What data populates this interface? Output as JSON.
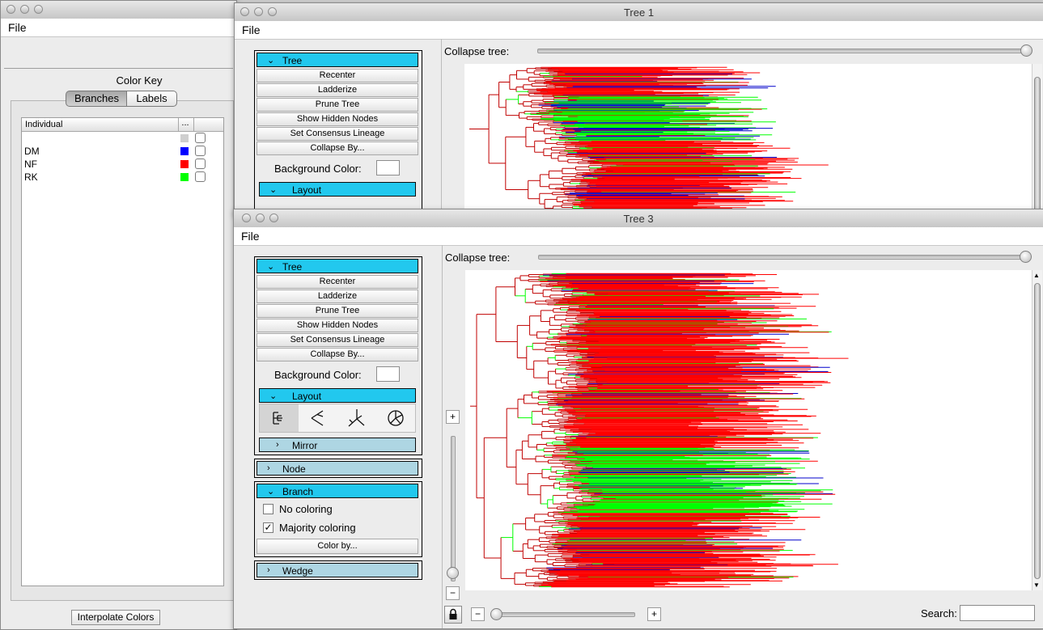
{
  "color_key_window": {
    "menu": "File",
    "heading": "Color Key",
    "tabs": [
      "Branches",
      "Labels"
    ],
    "table_headers": [
      "Individual",
      "..."
    ],
    "rows": [
      {
        "label": "",
        "color": "#cfcfcf"
      },
      {
        "label": "DM",
        "color": "#0000ff"
      },
      {
        "label": "NF",
        "color": "#ff0000"
      },
      {
        "label": "RK",
        "color": "#00ff00"
      }
    ],
    "interpolate_button": "Interpolate Colors"
  },
  "tree1": {
    "title": "Tree 1",
    "menu": "File",
    "collapse_label": "Collapse tree:",
    "panel_tree": "Tree",
    "buttons": [
      "Recenter",
      "Ladderize",
      "Prune Tree",
      "Show Hidden Nodes",
      "Set Consensus Lineage",
      "Collapse By..."
    ],
    "background_color_label": "Background Color:",
    "panel_layout": "Layout"
  },
  "tree3": {
    "title": "Tree 3",
    "menu": "File",
    "collapse_label": "Collapse tree:",
    "panel_tree": "Tree",
    "buttons": [
      "Recenter",
      "Ladderize",
      "Prune Tree",
      "Show Hidden Nodes",
      "Set Consensus Lineage",
      "Collapse By..."
    ],
    "background_color_label": "Background Color:",
    "panel_layout": "Layout",
    "layout_icons": [
      "rectangular-layout-icon",
      "slanted-layout-icon",
      "unrooted-layout-icon",
      "radial-layout-icon"
    ],
    "panel_mirror": "Mirror",
    "panel_node": "Node",
    "panel_branch": "Branch",
    "no_coloring": "No coloring",
    "majority_coloring": "Majority coloring",
    "color_by_button": "Color by...",
    "panel_wedge": "Wedge",
    "zoom_in": "+",
    "zoom_out": "−",
    "h_minus": "−",
    "h_plus": "+",
    "search_label": "Search:",
    "search_value": ""
  },
  "colors": {
    "panel_accent": "#22c8ee",
    "panel_closed": "#aed6e3",
    "branch_red": "#ff0000",
    "branch_green": "#00ff00",
    "branch_blue": "#0000cc",
    "tree_line": "#c00000"
  }
}
